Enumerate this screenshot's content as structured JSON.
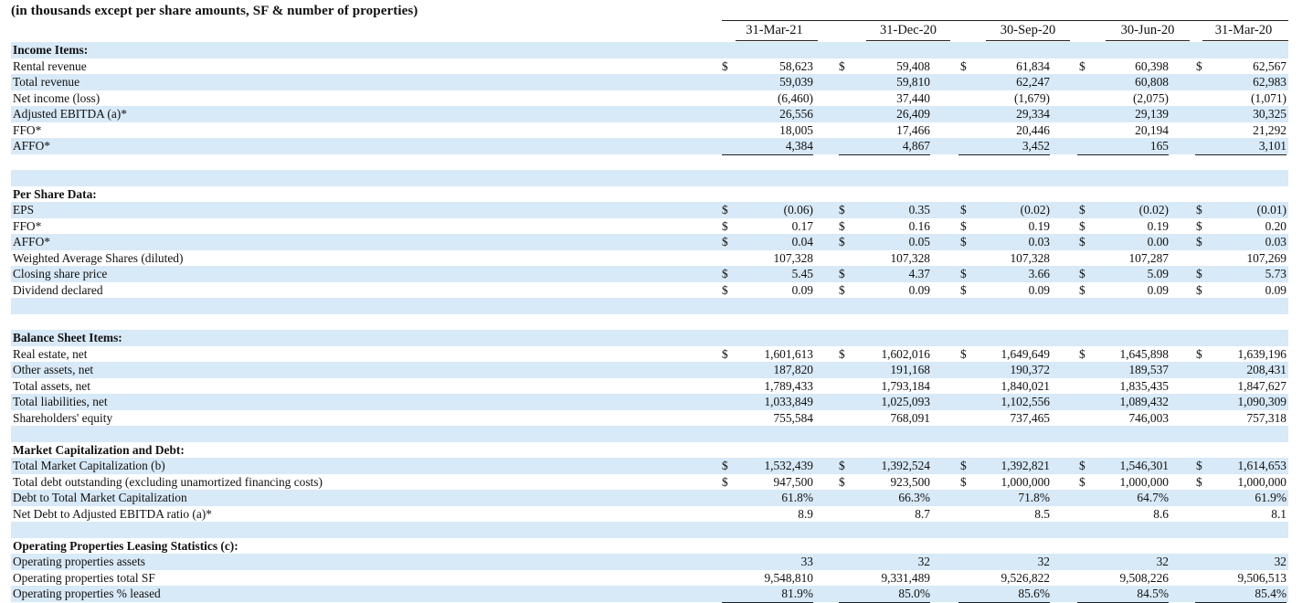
{
  "title": "(in thousands except per share amounts, SF & number of properties)",
  "periods": [
    "31-Mar-21",
    "31-Dec-20",
    "30-Sep-20",
    "30-Jun-20",
    "31-Mar-20"
  ],
  "rows": [
    {
      "type": "section",
      "label": "Income Items:"
    },
    {
      "type": "data",
      "label": "Rental revenue",
      "dollar": [
        true,
        true,
        true,
        true,
        true
      ],
      "values": [
        "58,623",
        "59,408",
        "61,834",
        "60,398",
        "62,567"
      ]
    },
    {
      "type": "data",
      "label": "Total revenue",
      "dollar": [
        false,
        false,
        false,
        false,
        false
      ],
      "values": [
        "59,039",
        "59,810",
        "62,247",
        "60,808",
        "62,983"
      ]
    },
    {
      "type": "data",
      "label": "Net income (loss)",
      "dollar": [
        false,
        false,
        false,
        false,
        false
      ],
      "values": [
        "(6,460)",
        "37,440",
        "(1,679)",
        "(2,075)",
        "(1,071)"
      ]
    },
    {
      "type": "data",
      "label": "Adjusted EBITDA (a)*",
      "dollar": [
        false,
        false,
        false,
        false,
        false
      ],
      "values": [
        "26,556",
        "26,409",
        "29,334",
        "29,139",
        "30,325"
      ]
    },
    {
      "type": "data",
      "label": "FFO*",
      "dollar": [
        false,
        false,
        false,
        false,
        false
      ],
      "values": [
        "18,005",
        "17,466",
        "20,446",
        "20,194",
        "21,292"
      ]
    },
    {
      "type": "data",
      "label": "AFFO*",
      "dollar": [
        false,
        false,
        false,
        false,
        false
      ],
      "values": [
        "4,384",
        "4,867",
        "3,452",
        "165",
        "3,101"
      ],
      "underline": true
    },
    {
      "type": "blank"
    },
    {
      "type": "blank"
    },
    {
      "type": "section",
      "label": "Per Share Data:"
    },
    {
      "type": "data",
      "label": "EPS",
      "dollar": [
        true,
        true,
        true,
        true,
        true
      ],
      "values": [
        "(0.06)",
        "0.35",
        "(0.02)",
        "(0.02)",
        "(0.01)"
      ]
    },
    {
      "type": "data",
      "label": "FFO*",
      "dollar": [
        true,
        true,
        true,
        true,
        true
      ],
      "values": [
        "0.17",
        "0.16",
        "0.19",
        "0.19",
        "0.20"
      ]
    },
    {
      "type": "data",
      "label": "AFFO*",
      "dollar": [
        true,
        true,
        true,
        true,
        true
      ],
      "values": [
        "0.04",
        "0.05",
        "0.03",
        "0.00",
        "0.03"
      ]
    },
    {
      "type": "data",
      "label": "Weighted Average Shares (diluted)",
      "dollar": [
        false,
        false,
        false,
        false,
        false
      ],
      "values": [
        "107,328",
        "107,328",
        "107,328",
        "107,287",
        "107,269"
      ]
    },
    {
      "type": "data",
      "label": "Closing share price",
      "dollar": [
        true,
        true,
        true,
        true,
        true
      ],
      "values": [
        "5.45",
        "4.37",
        "3.66",
        "5.09",
        "5.73"
      ]
    },
    {
      "type": "data",
      "label": "Dividend declared",
      "dollar": [
        true,
        true,
        true,
        true,
        true
      ],
      "values": [
        "0.09",
        "0.09",
        "0.09",
        "0.09",
        "0.09"
      ],
      "underline": true
    },
    {
      "type": "blank"
    },
    {
      "type": "blank"
    },
    {
      "type": "section",
      "label": "Balance Sheet Items:"
    },
    {
      "type": "data",
      "label": "Real estate, net",
      "dollar": [
        true,
        true,
        true,
        true,
        true
      ],
      "values": [
        "1,601,613",
        "1,602,016",
        "1,649,649",
        "1,645,898",
        "1,639,196"
      ]
    },
    {
      "type": "data",
      "label": "Other assets, net",
      "dollar": [
        false,
        false,
        false,
        false,
        false
      ],
      "values": [
        "187,820",
        "191,168",
        "190,372",
        "189,537",
        "208,431"
      ]
    },
    {
      "type": "data",
      "label": "Total assets, net",
      "dollar": [
        false,
        false,
        false,
        false,
        false
      ],
      "values": [
        "1,789,433",
        "1,793,184",
        "1,840,021",
        "1,835,435",
        "1,847,627"
      ]
    },
    {
      "type": "data",
      "label": "Total liabilities, net",
      "dollar": [
        false,
        false,
        false,
        false,
        false
      ],
      "values": [
        "1,033,849",
        "1,025,093",
        "1,102,556",
        "1,089,432",
        "1,090,309"
      ]
    },
    {
      "type": "data",
      "label": "Shareholders' equity",
      "dollar": [
        false,
        false,
        false,
        false,
        false
      ],
      "values": [
        "755,584",
        "768,091",
        "737,465",
        "746,003",
        "757,318"
      ],
      "underline": true
    },
    {
      "type": "blank"
    },
    {
      "type": "section",
      "label": "Market Capitalization and Debt:"
    },
    {
      "type": "data",
      "label": "Total Market Capitalization (b)",
      "dollar": [
        true,
        true,
        true,
        true,
        true
      ],
      "values": [
        "1,532,439",
        "1,392,524",
        "1,392,821",
        "1,546,301",
        "1,614,653"
      ]
    },
    {
      "type": "data",
      "label": "Total debt outstanding (excluding unamortized financing costs)",
      "dollar": [
        true,
        true,
        true,
        true,
        true
      ],
      "values": [
        "947,500",
        "923,500",
        "1,000,000",
        "1,000,000",
        "1,000,000"
      ]
    },
    {
      "type": "data",
      "label": "Debt to Total Market Capitalization",
      "dollar": [
        false,
        false,
        false,
        false,
        false
      ],
      "values": [
        "61.8%",
        "66.3%",
        "71.8%",
        "64.7%",
        "61.9%"
      ]
    },
    {
      "type": "data",
      "label": "Net Debt to Adjusted EBITDA ratio (a)*",
      "dollar": [
        false,
        false,
        false,
        false,
        false
      ],
      "values": [
        "8.9",
        "8.7",
        "8.5",
        "8.6",
        "8.1"
      ],
      "underline": true
    },
    {
      "type": "blank"
    },
    {
      "type": "section",
      "label": "Operating Properties Leasing Statistics (c):"
    },
    {
      "type": "data",
      "label": "Operating properties assets",
      "dollar": [
        false,
        false,
        false,
        false,
        false
      ],
      "values": [
        "33",
        "32",
        "32",
        "32",
        "32"
      ]
    },
    {
      "type": "data",
      "label": "Operating properties total SF",
      "dollar": [
        false,
        false,
        false,
        false,
        false
      ],
      "values": [
        "9,548,810",
        "9,331,489",
        "9,526,822",
        "9,508,226",
        "9,506,513"
      ]
    },
    {
      "type": "data",
      "label": "Operating properties % leased",
      "dollar": [
        false,
        false,
        false,
        false,
        false
      ],
      "values": [
        "81.9%",
        "85.0%",
        "85.6%",
        "84.5%",
        "85.4%"
      ],
      "underline": true
    }
  ]
}
